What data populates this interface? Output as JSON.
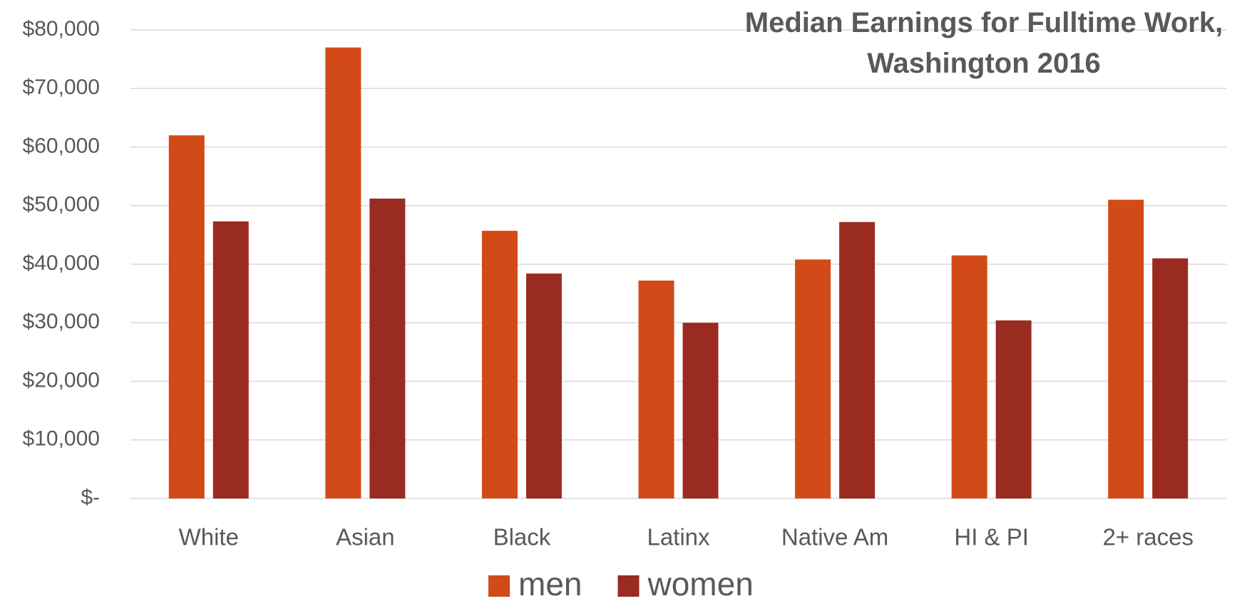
{
  "chart_data": {
    "type": "bar",
    "title": "Median Earnings for Fulltime Work,\nWashington 2016",
    "categories": [
      "White",
      "Asian",
      "Black",
      "Latinx",
      "Native Am",
      "HI & PI",
      "2+ races"
    ],
    "series": [
      {
        "name": "men",
        "color": "#d24a17",
        "values": [
          62000,
          77000,
          45700,
          37200,
          40800,
          41500,
          51000
        ]
      },
      {
        "name": "women",
        "color": "#9a2b20",
        "values": [
          47300,
          51200,
          38400,
          30000,
          47200,
          30400,
          41000
        ]
      }
    ],
    "ylim": [
      0,
      80000
    ],
    "yticks": [
      {
        "value": 0,
        "label": "$-"
      },
      {
        "value": 10000,
        "label": "$10,000"
      },
      {
        "value": 20000,
        "label": "$20,000"
      },
      {
        "value": 30000,
        "label": "$30,000"
      },
      {
        "value": 40000,
        "label": "$40,000"
      },
      {
        "value": 50000,
        "label": "$50,000"
      },
      {
        "value": 60000,
        "label": "$60,000"
      },
      {
        "value": 70000,
        "label": "$70,000"
      },
      {
        "value": 80000,
        "label": "$80,000"
      }
    ],
    "grid": true,
    "legend": "bottom"
  }
}
